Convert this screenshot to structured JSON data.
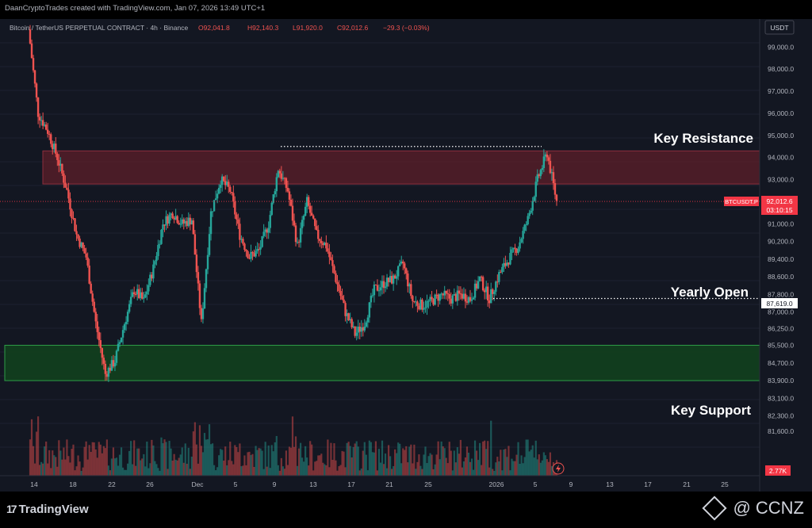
{
  "header": {
    "credit": "DaanCryptoTrades created with TradingView.com, Jan 07, 2026 13:49 UTC+1"
  },
  "legend": {
    "symbol": "Bitcoin / TetherUS PERPETUAL CONTRACT · 4h · Binance",
    "open": "O92,041.8",
    "high": "H92,140.3",
    "low": "L91,920.0",
    "close": "C92,012.6",
    "change": "−29.3 (−0.03%)"
  },
  "currency_button": "USDT",
  "price_tag": {
    "symbol": "BTCUSDT.P",
    "price": "92,012.6",
    "countdown": "03:10:15"
  },
  "yearly_open_tag": "87,619.0",
  "volume_tag": "2.77K",
  "annotations": {
    "resistance": "Key Resistance",
    "yearly_open": "Yearly Open",
    "support": "Key Support"
  },
  "footer": {
    "brand": "TradingView",
    "watermark": "@ CCNZ"
  },
  "colors": {
    "background": "#131722",
    "up": "#26a69a",
    "down": "#ef5350",
    "resistance_zone": "#5e1f2a",
    "support_zone": "#12401e",
    "support_border": "#2e9e48",
    "tag_red": "#f23645"
  },
  "chart_data": {
    "type": "candlestick",
    "title": "",
    "timeframe": "4h",
    "ylim": [
      80600,
      100300
    ],
    "y_ticks": [
      "99,000.0",
      "98,000.0",
      "97,000.0",
      "96,000.0",
      "95,000.0",
      "94,000.0",
      "93,000.0",
      "92,000.0",
      "91,000.0",
      "90,200.0",
      "89,400.0",
      "88,600.0",
      "87,800.0",
      "87,000.0",
      "86,250.0",
      "85,500.0",
      "84,700.0",
      "83,900.0",
      "83,100.0",
      "82,300.0",
      "81,600.0"
    ],
    "x_ticks": [
      "14",
      "18",
      "22",
      "26",
      "Dec",
      "5",
      "9",
      "13",
      "17",
      "21",
      "25",
      "2026",
      "5",
      "9",
      "13",
      "17",
      "21",
      "25"
    ],
    "price_path": [
      [
        "Nov 13",
        99800
      ],
      [
        "Nov 14",
        96000
      ],
      [
        "Nov 15",
        95200
      ],
      [
        "Nov 16",
        94000
      ],
      [
        "Nov 17",
        92500
      ],
      [
        "Nov 18",
        90500
      ],
      [
        "Nov 19",
        89500
      ],
      [
        "Nov 20",
        86500
      ],
      [
        "Nov 21",
        84200
      ],
      [
        "Nov 22",
        84800
      ],
      [
        "Nov 23",
        86500
      ],
      [
        "Nov 24",
        88000
      ],
      [
        "Nov 25",
        87500
      ],
      [
        "Nov 26",
        89000
      ],
      [
        "Nov 27",
        91000
      ],
      [
        "Nov 28",
        91500
      ],
      [
        "Nov 29",
        91000
      ],
      [
        "Nov 30",
        91200
      ],
      [
        "Dec 1",
        86500
      ],
      [
        "Dec 2",
        91500
      ],
      [
        "Dec 3",
        93000
      ],
      [
        "Dec 4",
        92500
      ],
      [
        "Dec 5",
        90500
      ],
      [
        "Dec 6",
        89500
      ],
      [
        "Dec 7",
        89800
      ],
      [
        "Dec 8",
        91000
      ],
      [
        "Dec 9",
        93500
      ],
      [
        "Dec 10",
        92500
      ],
      [
        "Dec 11",
        90000
      ],
      [
        "Dec 12",
        92000
      ],
      [
        "Dec 13",
        90500
      ],
      [
        "Dec 14",
        90000
      ],
      [
        "Dec 15",
        88500
      ],
      [
        "Dec 16",
        87000
      ],
      [
        "Dec 17",
        86000
      ],
      [
        "Dec 18",
        86500
      ],
      [
        "Dec 19",
        88000
      ],
      [
        "Dec 20",
        88300
      ],
      [
        "Dec 21",
        88500
      ],
      [
        "Dec 22",
        89200
      ],
      [
        "Dec 23",
        87500
      ],
      [
        "Dec 24",
        87300
      ],
      [
        "Dec 25",
        87500
      ],
      [
        "Dec 26",
        87800
      ],
      [
        "Dec 27",
        87600
      ],
      [
        "Dec 28",
        87800
      ],
      [
        "Dec 29",
        87600
      ],
      [
        "Dec 30",
        88500
      ],
      [
        "Dec 31",
        87619
      ],
      [
        "Jan 1",
        88700
      ],
      [
        "Jan 2",
        89400
      ],
      [
        "Jan 3",
        90000
      ],
      [
        "Jan 4",
        91200
      ],
      [
        "Jan 5",
        93000
      ],
      [
        "Jan 6",
        94200
      ],
      [
        "Jan 7",
        92012.6
      ]
    ],
    "levels": {
      "resistance_zone": [
        92800,
        94300
      ],
      "resistance_high": 94500,
      "yearly_open": 87619.0,
      "support_zone": [
        83900,
        85500
      ],
      "last_price": 92012.6
    },
    "volume_last": "2.77K"
  }
}
